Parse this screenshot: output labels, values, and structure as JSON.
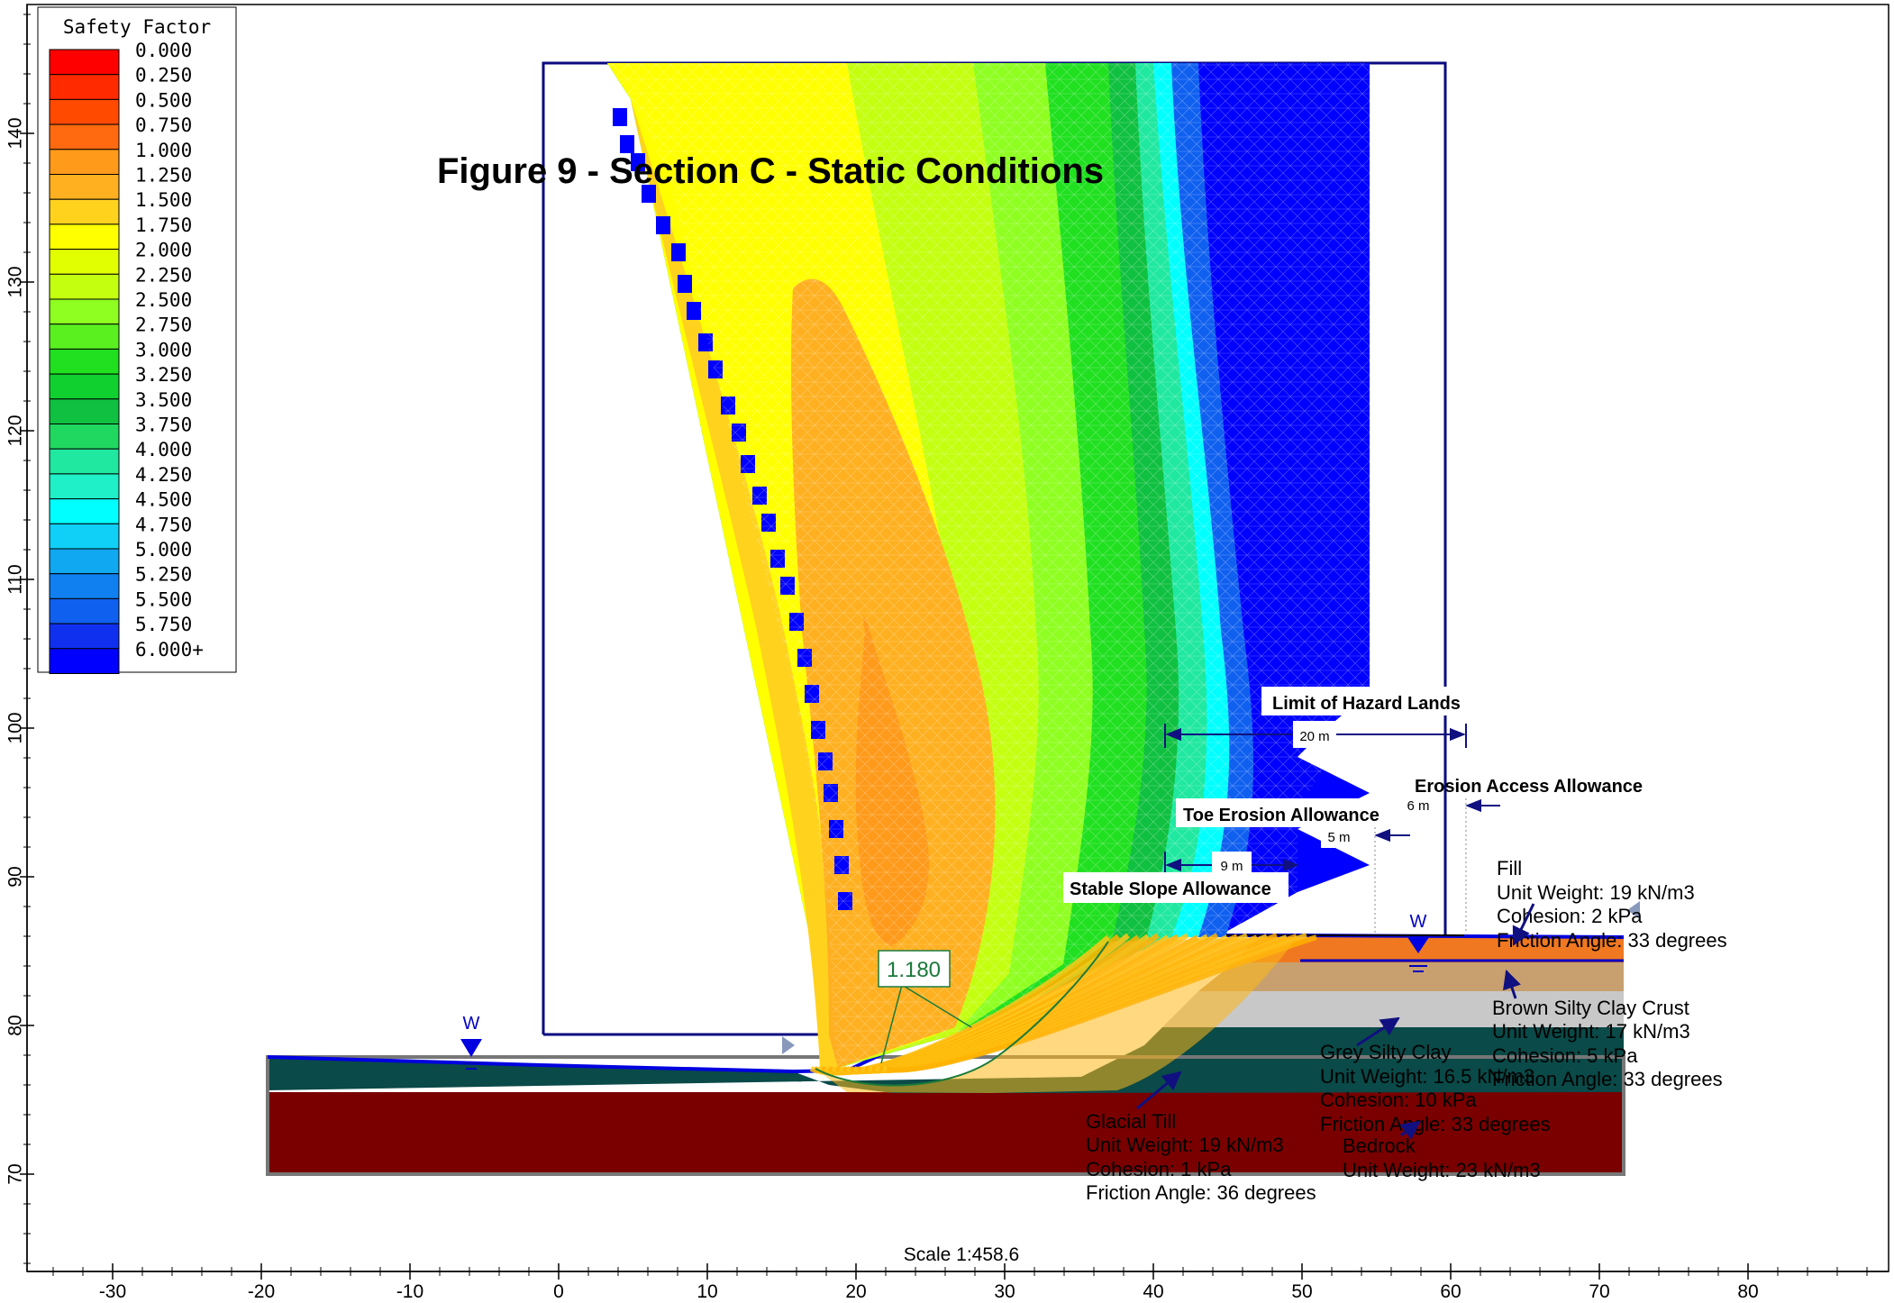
{
  "title": "Figure 9 - Section C - Static Conditions",
  "legend": {
    "title": "Safety Factor",
    "entries": [
      {
        "label": "0.000",
        "color": "#ff0000"
      },
      {
        "label": "0.250",
        "color": "#ff2a00"
      },
      {
        "label": "0.500",
        "color": "#ff4a00"
      },
      {
        "label": "0.750",
        "color": "#ff6a10"
      },
      {
        "label": "1.000",
        "color": "#ff9a1a"
      },
      {
        "label": "1.250",
        "color": "#ffb020"
      },
      {
        "label": "1.500",
        "color": "#ffd21e"
      },
      {
        "label": "1.750",
        "color": "#ffff00"
      },
      {
        "label": "2.000",
        "color": "#e2ff00"
      },
      {
        "label": "2.250",
        "color": "#c4ff10"
      },
      {
        "label": "2.500",
        "color": "#8eff20"
      },
      {
        "label": "2.750",
        "color": "#5af020"
      },
      {
        "label": "3.000",
        "color": "#20e020"
      },
      {
        "label": "3.250",
        "color": "#10d030"
      },
      {
        "label": "3.500",
        "color": "#10c040"
      },
      {
        "label": "3.750",
        "color": "#20d860"
      },
      {
        "label": "4.000",
        "color": "#20e8a0"
      },
      {
        "label": "4.250",
        "color": "#20f0c8"
      },
      {
        "label": "4.500",
        "color": "#00ffff"
      },
      {
        "label": "4.750",
        "color": "#10d0f8"
      },
      {
        "label": "5.000",
        "color": "#10a8f0"
      },
      {
        "label": "5.250",
        "color": "#1080f0"
      },
      {
        "label": "5.500",
        "color": "#1060f0"
      },
      {
        "label": "5.750",
        "color": "#1030f0"
      },
      {
        "label": "6.000+",
        "color": "#0000ff"
      }
    ]
  },
  "min_fs_label": "1.180",
  "scale_text": "Scale 1:458.6",
  "x_axis": {
    "ticks": [
      "-30",
      "-20",
      "-10",
      "0",
      "10",
      "20",
      "30",
      "40",
      "50",
      "60",
      "70",
      "80"
    ]
  },
  "y_axis": {
    "ticks": [
      "70",
      "80",
      "90",
      "100",
      "110",
      "120",
      "130",
      "140"
    ]
  },
  "water_marker": "W",
  "dimensions": {
    "limit_of_hazard_lands": {
      "title": "Limit of Hazard Lands",
      "value": "20 m"
    },
    "erosion_access_allowance": {
      "title": "Erosion Access Allowance",
      "value": "6 m"
    },
    "toe_erosion_allowance": {
      "title": "Toe Erosion Allowance",
      "value": "5 m"
    },
    "stable_slope_allowance": {
      "title": "Stable Slope Allowance",
      "value": "9 m"
    }
  },
  "materials": {
    "fill": {
      "name": "Fill",
      "unit_weight": "Unit Weight: 19 kN/m3",
      "cohesion": "Cohesion: 2 kPa",
      "friction": "Friction Angle: 33 degrees",
      "color": "#f07820"
    },
    "brown": {
      "name": "Brown Silty Clay Crust",
      "unit_weight": "Unit Weight: 17 kN/m3",
      "cohesion": "Cohesion: 5 kPa",
      "friction": "Friction Angle: 33 degrees",
      "color": "#c8a070"
    },
    "grey": {
      "name": "Grey Silty Clay",
      "unit_weight": "Unit Weight: 16.5 kN/m3",
      "cohesion": "Cohesion: 10 kPa",
      "friction": "Friction Angle: 33 degrees",
      "color": "#c8c8c8"
    },
    "till": {
      "name": "Glacial Till",
      "unit_weight": "Unit Weight: 19 kN/m3",
      "cohesion": "Cohesion: 1 kPa",
      "friction": "Friction Angle: 36 degrees",
      "color": "#0a4a48"
    },
    "bedrock": {
      "name": "Bedrock",
      "unit_weight": "Unit Weight: 23 kN/m3",
      "color": "#7a0000"
    }
  }
}
